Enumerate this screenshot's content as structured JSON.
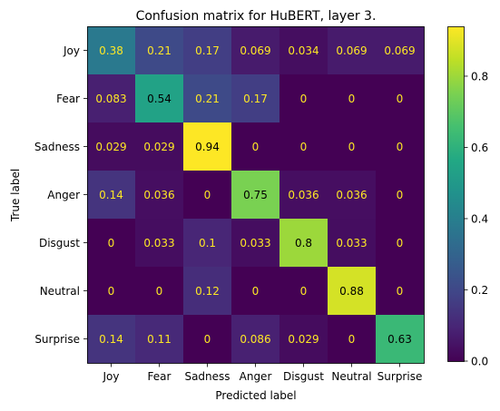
{
  "chart_data": {
    "type": "heatmap",
    "title": "Confusion matrix for HuBERT, layer 3.",
    "xlabel": "Predicted label",
    "ylabel": "True label",
    "categories": [
      "Joy",
      "Fear",
      "Sadness",
      "Anger",
      "Disgust",
      "Neutral",
      "Surprise"
    ],
    "matrix": [
      [
        0.38,
        0.21,
        0.17,
        0.069,
        0.034,
        0.069,
        0.069
      ],
      [
        0.083,
        0.54,
        0.21,
        0.17,
        0,
        0,
        0
      ],
      [
        0.029,
        0.029,
        0.94,
        0,
        0,
        0,
        0
      ],
      [
        0.14,
        0.036,
        0,
        0.75,
        0.036,
        0.036,
        0
      ],
      [
        0,
        0.033,
        0.1,
        0.033,
        0.8,
        0.033,
        0
      ],
      [
        0,
        0,
        0.12,
        0,
        0,
        0.88,
        0
      ],
      [
        0.14,
        0.11,
        0,
        0.086,
        0.029,
        0,
        0.63
      ]
    ],
    "cell_labels": [
      [
        "0.38",
        "0.21",
        "0.17",
        "0.069",
        "0.034",
        "0.069",
        "0.069"
      ],
      [
        "0.083",
        "0.54",
        "0.21",
        "0.17",
        "0",
        "0",
        "0"
      ],
      [
        "0.029",
        "0.029",
        "0.94",
        "0",
        "0",
        "0",
        "0"
      ],
      [
        "0.14",
        "0.036",
        "0",
        "0.75",
        "0.036",
        "0.036",
        "0"
      ],
      [
        "0",
        "0.033",
        "0.1",
        "0.033",
        "0.8",
        "0.033",
        "0"
      ],
      [
        "0",
        "0",
        "0.12",
        "0",
        "0",
        "0.88",
        "0"
      ],
      [
        "0.14",
        "0.11",
        "0",
        "0.086",
        "0.029",
        "0",
        "0.63"
      ]
    ],
    "colormap": "viridis",
    "color_range": [
      0,
      0.94
    ],
    "colorbar_ticks": [
      0.0,
      0.2,
      0.4,
      0.6,
      0.8
    ],
    "colorbar_tick_labels": [
      "0.0",
      "0.2",
      "0.4",
      "0.6",
      "0.8"
    ],
    "text_colors": {
      "light": "#fde725",
      "dark": "#000000"
    },
    "grid": false
  }
}
